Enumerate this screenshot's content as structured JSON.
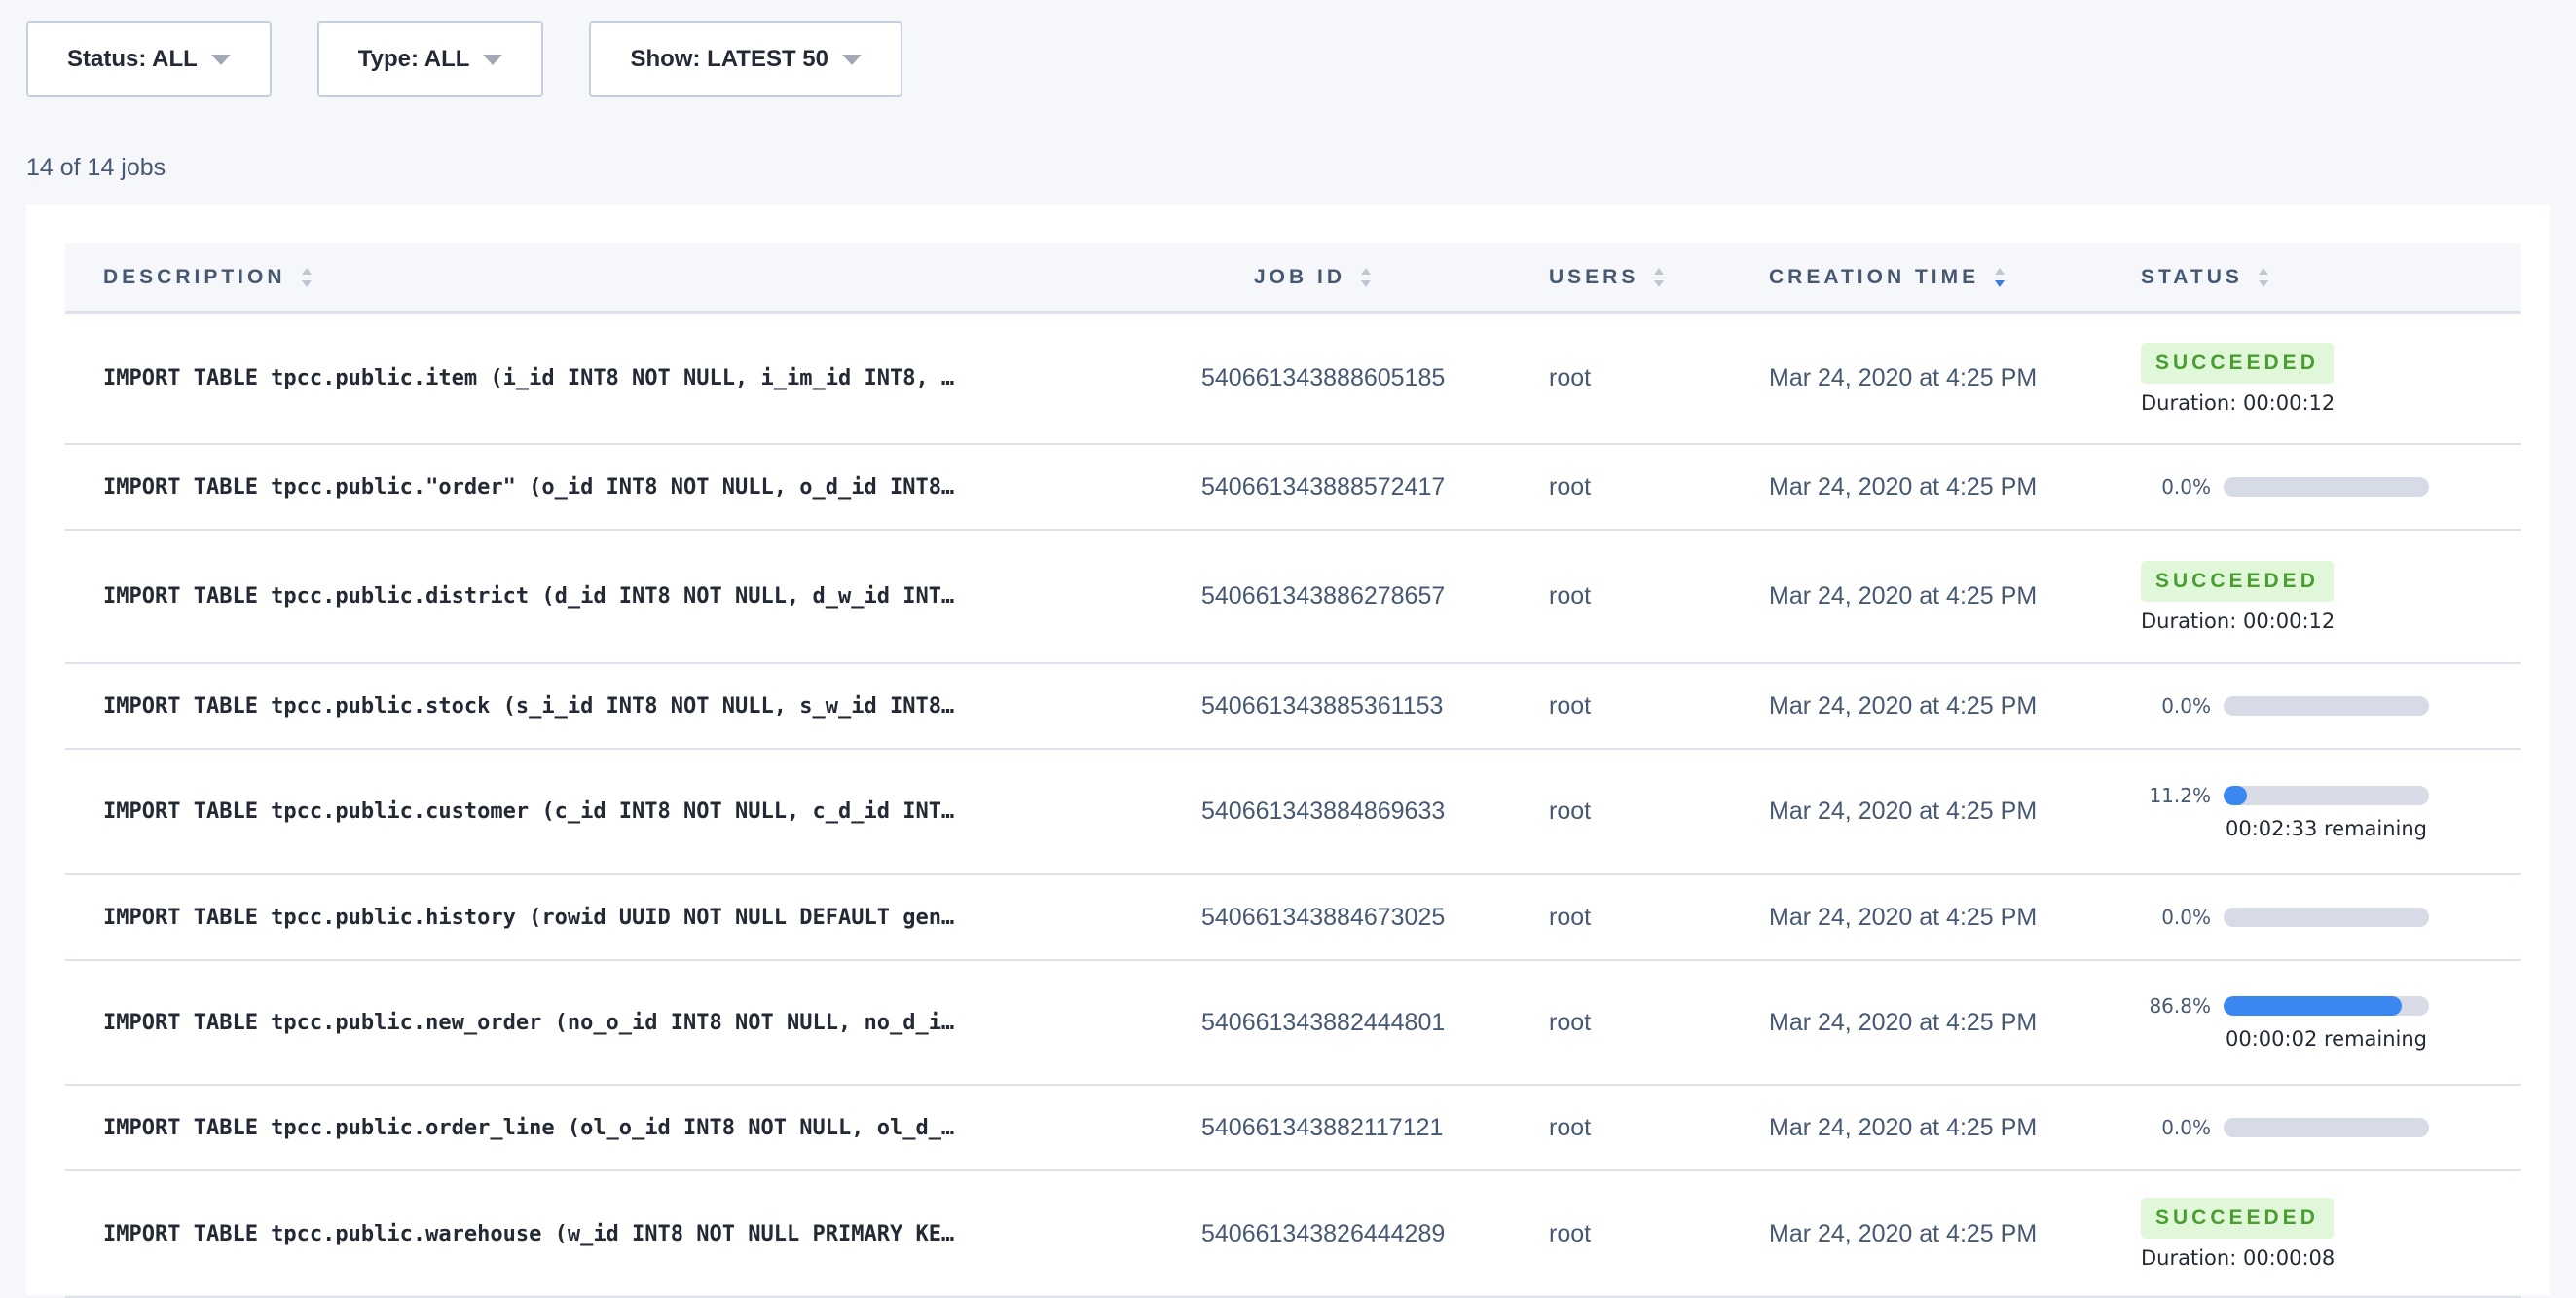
{
  "filters": [
    {
      "label": "Status: ALL"
    },
    {
      "label": "Type: ALL"
    },
    {
      "label": "Show: LATEST 50"
    }
  ],
  "count": "14 of 14 jobs",
  "columns": [
    "DESCRIPTION",
    "JOB ID",
    "USERS",
    "CREATION TIME",
    "STATUS"
  ],
  "sorted_column": "CREATION TIME",
  "colors": {
    "accent": "#3a87f0",
    "success_bg": "#e0f7d9",
    "success_text": "#4a9d30"
  },
  "jobs": [
    {
      "desc": "IMPORT TABLE tpcc.public.item (i_id INT8 NOT NULL, i_im_id INT8, …",
      "id": "540661343888605185",
      "user": "root",
      "time": "Mar 24, 2020 at 4:25 PM",
      "status": "SUCCEEDED",
      "duration": "Duration: 00:00:12"
    },
    {
      "desc": "IMPORT TABLE tpcc.public.\"order\" (o_id INT8 NOT NULL, o_d_id INT8…",
      "id": "540661343888572417",
      "user": "root",
      "time": "Mar 24, 2020 at 4:25 PM",
      "progress": 0.0,
      "pct": "0.0%"
    },
    {
      "desc": "IMPORT TABLE tpcc.public.district (d_id INT8 NOT NULL, d_w_id INT…",
      "id": "540661343886278657",
      "user": "root",
      "time": "Mar 24, 2020 at 4:25 PM",
      "status": "SUCCEEDED",
      "duration": "Duration: 00:00:12"
    },
    {
      "desc": "IMPORT TABLE tpcc.public.stock (s_i_id INT8 NOT NULL, s_w_id INT8…",
      "id": "540661343885361153",
      "user": "root",
      "time": "Mar 24, 2020 at 4:25 PM",
      "progress": 0.0,
      "pct": "0.0%"
    },
    {
      "desc": "IMPORT TABLE tpcc.public.customer (c_id INT8 NOT NULL, c_d_id INT…",
      "id": "540661343884869633",
      "user": "root",
      "time": "Mar 24, 2020 at 4:25 PM",
      "progress": 11.2,
      "pct": "11.2%",
      "remaining": "00:02:33 remaining"
    },
    {
      "desc": "IMPORT TABLE tpcc.public.history (rowid UUID NOT NULL DEFAULT gen…",
      "id": "540661343884673025",
      "user": "root",
      "time": "Mar 24, 2020 at 4:25 PM",
      "progress": 0.0,
      "pct": "0.0%"
    },
    {
      "desc": "IMPORT TABLE tpcc.public.new_order (no_o_id INT8 NOT NULL, no_d_i…",
      "id": "540661343882444801",
      "user": "root",
      "time": "Mar 24, 2020 at 4:25 PM",
      "progress": 86.8,
      "pct": "86.8%",
      "remaining": "00:00:02 remaining"
    },
    {
      "desc": "IMPORT TABLE tpcc.public.order_line (ol_o_id INT8 NOT NULL, ol_d_…",
      "id": "540661343882117121",
      "user": "root",
      "time": "Mar 24, 2020 at 4:25 PM",
      "progress": 0.0,
      "pct": "0.0%"
    },
    {
      "desc": "IMPORT TABLE tpcc.public.warehouse (w_id INT8 NOT NULL PRIMARY KE…",
      "id": "540661343826444289",
      "user": "root",
      "time": "Mar 24, 2020 at 4:25 PM",
      "status": "SUCCEEDED",
      "duration": "Duration: 00:00:08"
    }
  ]
}
